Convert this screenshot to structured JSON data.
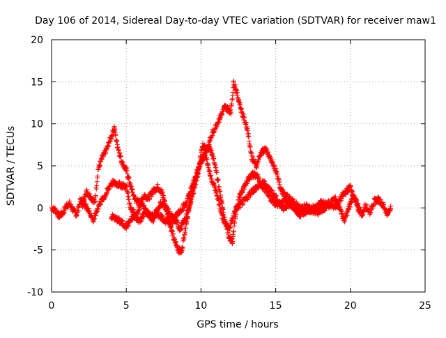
{
  "chart_data": {
    "type": "scatter",
    "title": "Day 106 of 2014, Sidereal Day-to-day VTEC variation (SDTVAR) for receiver maw1",
    "xlabel": "GPS time / hours",
    "ylabel": "SDTVAR / TECUs",
    "xlim": [
      0,
      25
    ],
    "ylim": [
      -10,
      20
    ],
    "x_ticks": [
      0,
      5,
      10,
      15,
      20,
      25
    ],
    "y_ticks": [
      -10,
      -5,
      0,
      5,
      10,
      15,
      20
    ],
    "x_tick_labels": [
      "0",
      "5",
      "10",
      "15",
      "20",
      "25"
    ],
    "y_tick_labels": [
      "-10",
      "-5",
      "0",
      "5",
      "10",
      "15",
      "20"
    ],
    "grid": true,
    "marker": "+",
    "series": [
      {
        "name": "SDTVAR",
        "color": "#ff0000",
        "sample_step_hours": 0.02,
        "anchors": [
          [
            0.0,
            0.0
          ],
          [
            0.3,
            -0.3
          ],
          [
            0.5,
            -1.0
          ],
          [
            0.8,
            -0.5
          ],
          [
            1.0,
            0.3
          ],
          [
            1.2,
            0.5
          ],
          [
            1.5,
            -0.4
          ],
          [
            1.7,
            -0.8
          ],
          [
            1.9,
            0.8
          ],
          [
            2.1,
            0.4
          ],
          [
            2.3,
            2.0
          ],
          [
            2.6,
            1.4
          ],
          [
            2.9,
            0.6
          ],
          [
            3.1,
            4.5
          ],
          [
            3.4,
            6.0
          ],
          [
            3.7,
            7.0
          ],
          [
            4.0,
            8.5
          ],
          [
            4.2,
            9.5
          ],
          [
            4.4,
            7.5
          ],
          [
            4.7,
            5.5
          ],
          [
            5.0,
            4.5
          ],
          [
            5.3,
            2.5
          ],
          [
            5.6,
            1.0
          ],
          [
            5.9,
            0.5
          ],
          [
            6.2,
            1.5
          ],
          [
            6.5,
            1.2
          ],
          [
            6.8,
            2.0
          ],
          [
            7.1,
            2.5
          ],
          [
            7.4,
            1.8
          ],
          [
            7.6,
            0.5
          ],
          [
            7.8,
            -1.0
          ],
          [
            8.0,
            -2.5
          ],
          [
            8.2,
            -3.8
          ],
          [
            8.5,
            -5.0
          ],
          [
            8.7,
            -5.2
          ],
          [
            8.9,
            -3.0
          ],
          [
            9.1,
            -1.0
          ],
          [
            9.3,
            1.0
          ],
          [
            9.5,
            2.5
          ],
          [
            9.8,
            4.5
          ],
          [
            10.1,
            6.0
          ],
          [
            10.4,
            7.2
          ],
          [
            10.7,
            6.8
          ],
          [
            11.0,
            4.5
          ],
          [
            11.3,
            1.5
          ],
          [
            11.6,
            -1.5
          ],
          [
            11.9,
            -3.5
          ],
          [
            12.1,
            -4.0
          ],
          [
            12.3,
            -1.0
          ],
          [
            12.6,
            1.5
          ],
          [
            12.9,
            2.5
          ],
          [
            13.2,
            3.5
          ],
          [
            13.5,
            4.0
          ],
          [
            13.8,
            3.8
          ],
          [
            14.1,
            2.5
          ],
          [
            14.4,
            2.0
          ],
          [
            14.7,
            1.0
          ],
          [
            15.0,
            0.5
          ],
          [
            15.3,
            0.4
          ],
          [
            15.7,
            1.0
          ],
          [
            16.0,
            0.5
          ],
          [
            16.5,
            -0.5
          ],
          [
            17.0,
            0.3
          ],
          [
            17.5,
            -0.4
          ],
          [
            18.0,
            0.6
          ],
          [
            18.5,
            0.5
          ],
          [
            19.0,
            1.0
          ],
          [
            19.3,
            0.0
          ],
          [
            19.6,
            -1.5
          ],
          [
            19.9,
            0.0
          ],
          [
            20.2,
            1.5
          ],
          [
            20.5,
            0.0
          ],
          [
            20.8,
            -0.8
          ],
          [
            21.0,
            0.3
          ],
          [
            21.3,
            -0.5
          ],
          [
            21.6,
            0.8
          ],
          [
            21.9,
            1.0
          ],
          [
            22.2,
            0.3
          ],
          [
            22.5,
            -0.8
          ],
          [
            22.7,
            0.2
          ]
        ]
      },
      {
        "name": "SDTVAR",
        "color": "#ff0000",
        "sample_step_hours": 0.02,
        "anchors": [
          [
            2.0,
            1.0
          ],
          [
            2.4,
            0.0
          ],
          [
            2.8,
            -1.5
          ],
          [
            3.2,
            0.5
          ],
          [
            3.6,
            1.5
          ],
          [
            4.0,
            3.0
          ],
          [
            4.5,
            2.8
          ],
          [
            5.0,
            2.5
          ],
          [
            5.3,
            0.0
          ],
          [
            5.7,
            -1.0
          ],
          [
            6.0,
            0.5
          ],
          [
            6.4,
            -0.5
          ],
          [
            6.8,
            -1.5
          ],
          [
            7.0,
            -0.5
          ],
          [
            7.3,
            0.5
          ],
          [
            7.7,
            0.0
          ],
          [
            8.0,
            -1.0
          ],
          [
            8.3,
            -1.5
          ],
          [
            8.6,
            -2.5
          ],
          [
            8.9,
            -1.5
          ],
          [
            9.2,
            0.0
          ],
          [
            9.5,
            2.0
          ],
          [
            9.8,
            4.0
          ],
          [
            10.1,
            7.5
          ],
          [
            10.4,
            7.0
          ],
          [
            10.8,
            9.0
          ],
          [
            11.2,
            10.5
          ],
          [
            11.6,
            12.0
          ],
          [
            12.0,
            11.5
          ],
          [
            12.2,
            15.0
          ],
          [
            12.5,
            13.0
          ],
          [
            12.8,
            11.0
          ],
          [
            13.1,
            9.5
          ],
          [
            13.4,
            6.0
          ],
          [
            13.7,
            5.0
          ],
          [
            14.0,
            6.5
          ],
          [
            14.3,
            7.0
          ],
          [
            14.6,
            6.0
          ],
          [
            15.0,
            4.5
          ],
          [
            15.3,
            2.5
          ],
          [
            15.6,
            1.5
          ],
          [
            16.0,
            1.0
          ],
          [
            16.5,
            0.2
          ],
          [
            17.0,
            -0.5
          ],
          [
            17.5,
            0.0
          ],
          [
            18.0,
            -0.3
          ],
          [
            18.5,
            0.3
          ],
          [
            19.0,
            0.2
          ],
          [
            19.5,
            1.5
          ],
          [
            20.0,
            2.5
          ],
          [
            20.3,
            1.0
          ],
          [
            20.6,
            0.0
          ]
        ]
      },
      {
        "name": "SDTVAR",
        "color": "#ff0000",
        "sample_step_hours": 0.02,
        "anchors": [
          [
            4.0,
            -1.0
          ],
          [
            4.5,
            -1.5
          ],
          [
            5.0,
            -2.2
          ],
          [
            5.5,
            -1.0
          ],
          [
            5.9,
            -1.5
          ],
          [
            6.3,
            -0.5
          ],
          [
            6.7,
            -1.0
          ],
          [
            7.2,
            -0.8
          ],
          [
            7.6,
            -1.5
          ],
          [
            8.0,
            -1.8
          ],
          [
            8.5,
            -0.5
          ],
          [
            9.0,
            0.5
          ],
          [
            9.5,
            3.0
          ],
          [
            10.0,
            5.5
          ],
          [
            10.3,
            6.5
          ],
          [
            10.6,
            4.0
          ],
          [
            11.0,
            2.0
          ],
          [
            11.5,
            -1.5
          ],
          [
            11.9,
            -2.5
          ],
          [
            12.3,
            -0.2
          ],
          [
            12.7,
            0.5
          ],
          [
            13.0,
            1.0
          ],
          [
            13.4,
            2.0
          ],
          [
            13.8,
            2.5
          ],
          [
            14.2,
            3.0
          ],
          [
            14.6,
            2.2
          ],
          [
            15.0,
            1.2
          ],
          [
            15.5,
            0.0
          ],
          [
            16.0,
            0.5
          ],
          [
            16.6,
            -0.8
          ],
          [
            17.2,
            -0.2
          ],
          [
            17.8,
            -0.6
          ],
          [
            18.3,
            0.0
          ]
        ]
      }
    ]
  }
}
